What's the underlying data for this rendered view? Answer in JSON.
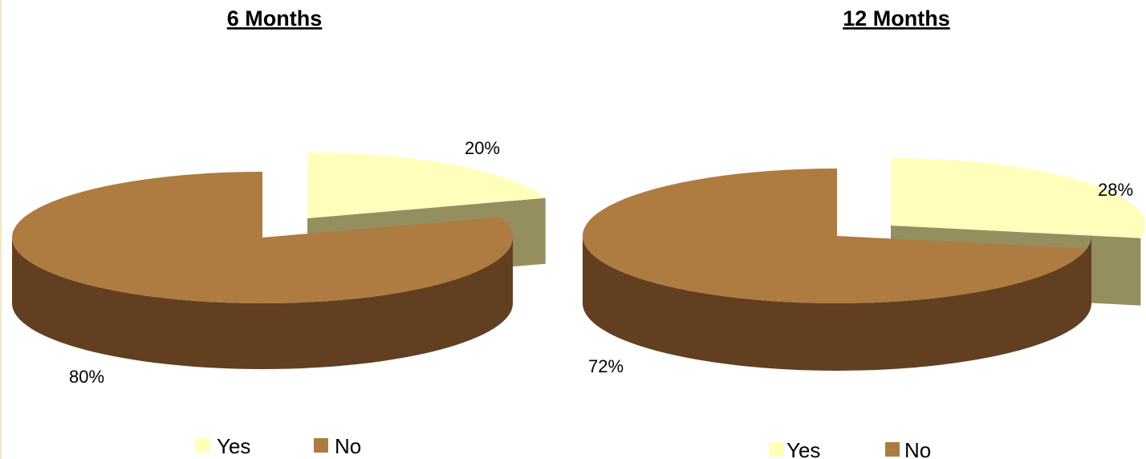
{
  "chart_data": [
    {
      "type": "pie",
      "style": "3d-exploded",
      "title": "6 Months",
      "categories": [
        "Yes",
        "No"
      ],
      "values": [
        20,
        80
      ],
      "labels": [
        "20%",
        "80%"
      ],
      "colors": {
        "Yes": "#ffffbb",
        "No": "#ae7b41"
      },
      "legend": "bottom"
    },
    {
      "type": "pie",
      "style": "3d-exploded",
      "title": "12 Months",
      "categories": [
        "Yes",
        "No"
      ],
      "values": [
        28,
        72
      ],
      "labels": [
        "28%",
        "72%"
      ],
      "colors": {
        "Yes": "#ffffbb",
        "No": "#ae7b41"
      },
      "legend": "bottom"
    }
  ],
  "side_colors": {
    "Yes": "#958e5e",
    "No": "#623f21"
  }
}
